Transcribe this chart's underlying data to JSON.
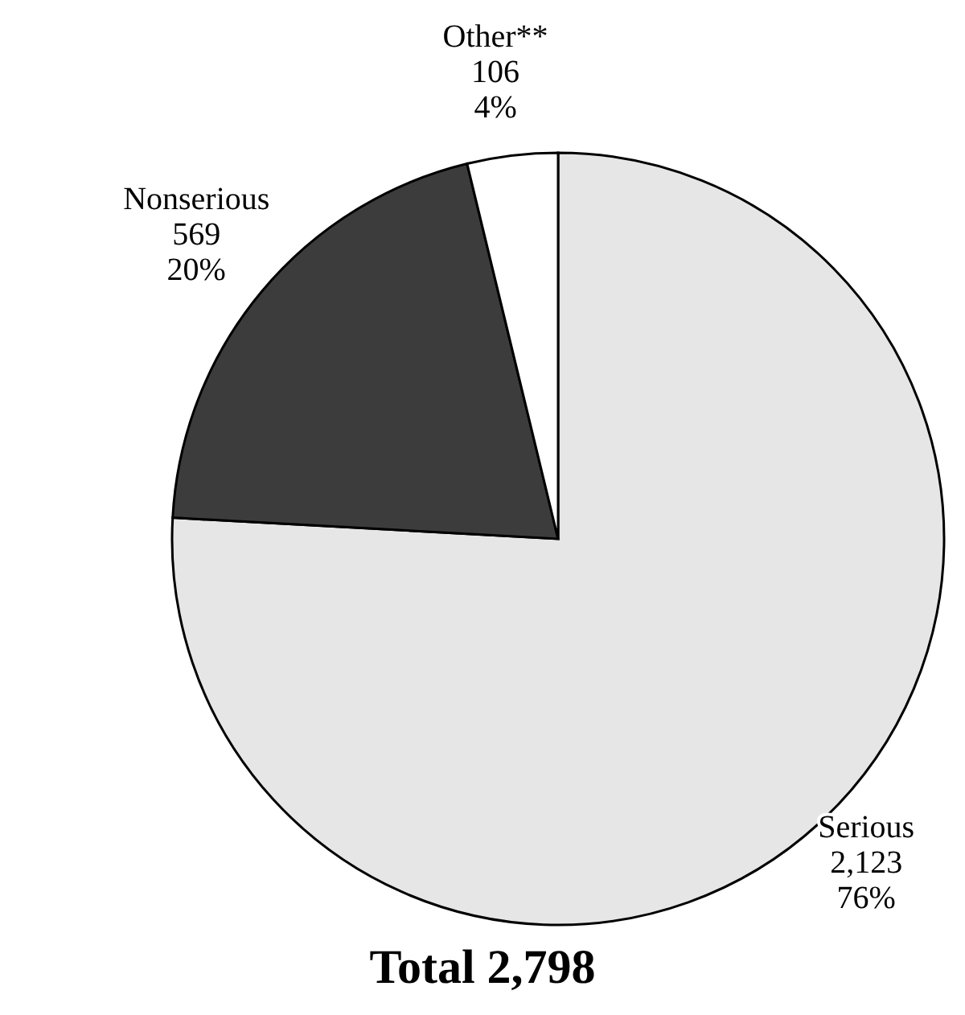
{
  "chart_data": {
    "type": "pie",
    "title": "Total 2,798",
    "categories": [
      "Serious",
      "Nonserious",
      "Other**"
    ],
    "values": [
      2123,
      569,
      106
    ],
    "value_labels": [
      "2,123\n76%",
      "569\n20%",
      "106\n4%"
    ],
    "colors": [
      "#e6e6e6",
      "#3c3c3c",
      "#ffffff"
    ]
  }
}
